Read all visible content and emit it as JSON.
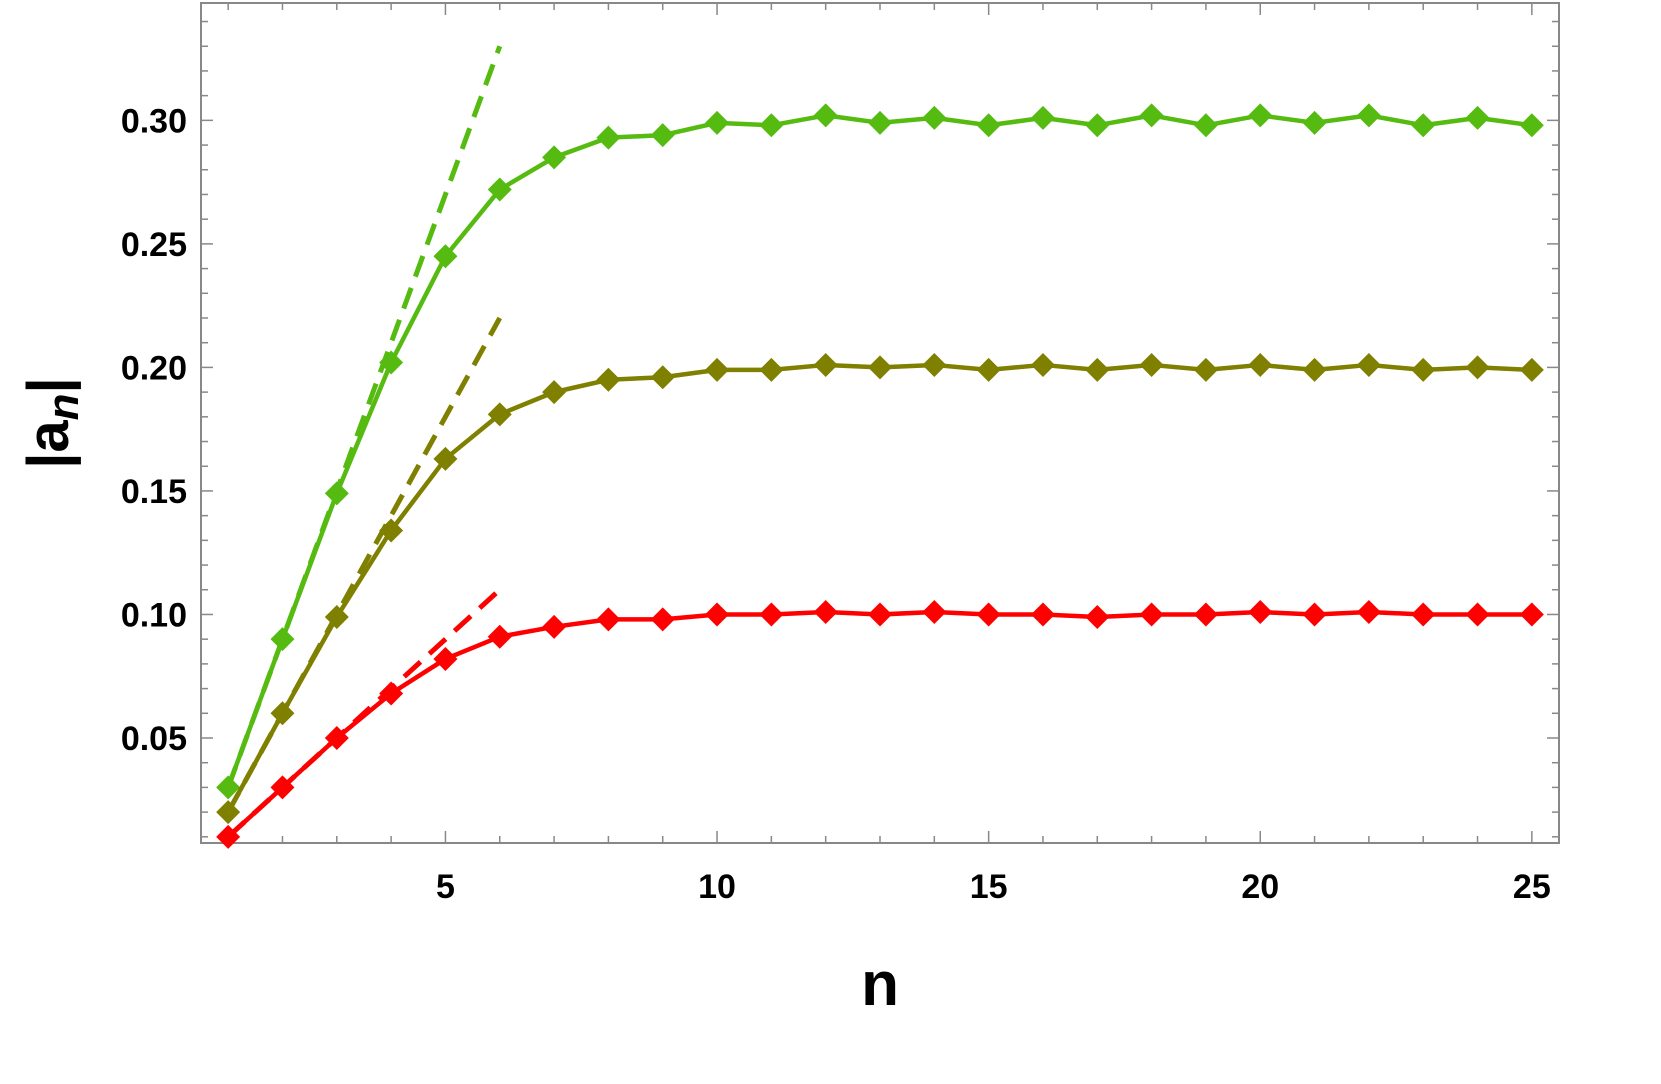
{
  "chart_data": {
    "type": "line",
    "xlabel": "n",
    "ylabel": {
      "base": "|a",
      "subscript": "n",
      "close": "|"
    },
    "xlim": [
      0.5,
      25.5
    ],
    "ylim": [
      0.0075,
      0.3475
    ],
    "xticks": [
      5,
      10,
      15,
      20,
      25
    ],
    "yticks": [
      0.05,
      0.1,
      0.15,
      0.2,
      0.25,
      0.3
    ],
    "ytick_labels": [
      "0.05",
      "0.10",
      "0.15",
      "0.20",
      "0.25",
      "0.30"
    ],
    "xtick_labels": [
      "5",
      "10",
      "15",
      "20",
      "25"
    ],
    "grid": false,
    "x": [
      1,
      2,
      3,
      4,
      5,
      6,
      7,
      8,
      9,
      10,
      11,
      12,
      13,
      14,
      15,
      16,
      17,
      18,
      19,
      20,
      21,
      22,
      23,
      24,
      25
    ],
    "series": [
      {
        "color": "#55bb11",
        "values": [
          0.03,
          0.09,
          0.149,
          0.202,
          0.245,
          0.272,
          0.285,
          0.293,
          0.294,
          0.299,
          0.298,
          0.302,
          0.299,
          0.301,
          0.298,
          0.301,
          0.298,
          0.302,
          0.298,
          0.302,
          0.299,
          0.302,
          0.298,
          0.301,
          0.298
        ],
        "fit_line": {
          "x": [
            1,
            6
          ],
          "y": [
            0.03,
            0.33
          ]
        }
      },
      {
        "color": "#7f7f00",
        "values": [
          0.02,
          0.06,
          0.099,
          0.134,
          0.163,
          0.181,
          0.19,
          0.195,
          0.196,
          0.199,
          0.199,
          0.201,
          0.2,
          0.201,
          0.199,
          0.201,
          0.199,
          0.201,
          0.199,
          0.201,
          0.199,
          0.201,
          0.199,
          0.2,
          0.199
        ],
        "fit_line": {
          "x": [
            1,
            6
          ],
          "y": [
            0.02,
            0.22
          ]
        }
      },
      {
        "color": "#ff0000",
        "values": [
          0.01,
          0.03,
          0.05,
          0.068,
          0.082,
          0.091,
          0.095,
          0.098,
          0.098,
          0.1,
          0.1,
          0.101,
          0.1,
          0.101,
          0.1,
          0.1,
          0.099,
          0.1,
          0.1,
          0.101,
          0.1,
          0.101,
          0.1,
          0.1,
          0.1
        ],
        "fit_line": {
          "x": [
            1,
            6
          ],
          "y": [
            0.01,
            0.11
          ]
        }
      }
    ]
  }
}
